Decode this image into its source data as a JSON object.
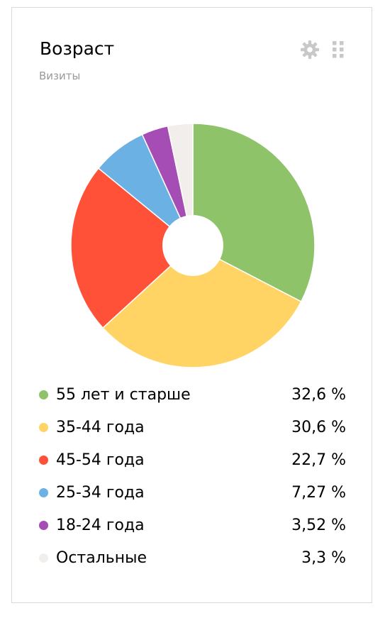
{
  "widget": {
    "title": "Возраст",
    "subtitle": "Визиты",
    "icons": {
      "settings": "gear-icon",
      "drag": "drag-handle-icon"
    }
  },
  "chart_data": {
    "type": "pie",
    "donut": true,
    "series": [
      {
        "name": "55 лет и старше",
        "value": 32.6,
        "label": "32,6 %",
        "color": "#8fc36a"
      },
      {
        "name": "35-44 года",
        "value": 30.6,
        "label": "30,6 %",
        "color": "#ffd464"
      },
      {
        "name": "45-54 года",
        "value": 22.7,
        "label": "22,7 %",
        "color": "#ff5138"
      },
      {
        "name": "25-34 года",
        "value": 7.27,
        "label": "7,27 %",
        "color": "#6cb1e3"
      },
      {
        "name": "18-24 года",
        "value": 3.52,
        "label": "3,52 %",
        "color": "#a54cb5"
      },
      {
        "name": "Остальные",
        "value": 3.3,
        "label": "3,3 %",
        "color": "#f2eeec"
      }
    ]
  }
}
